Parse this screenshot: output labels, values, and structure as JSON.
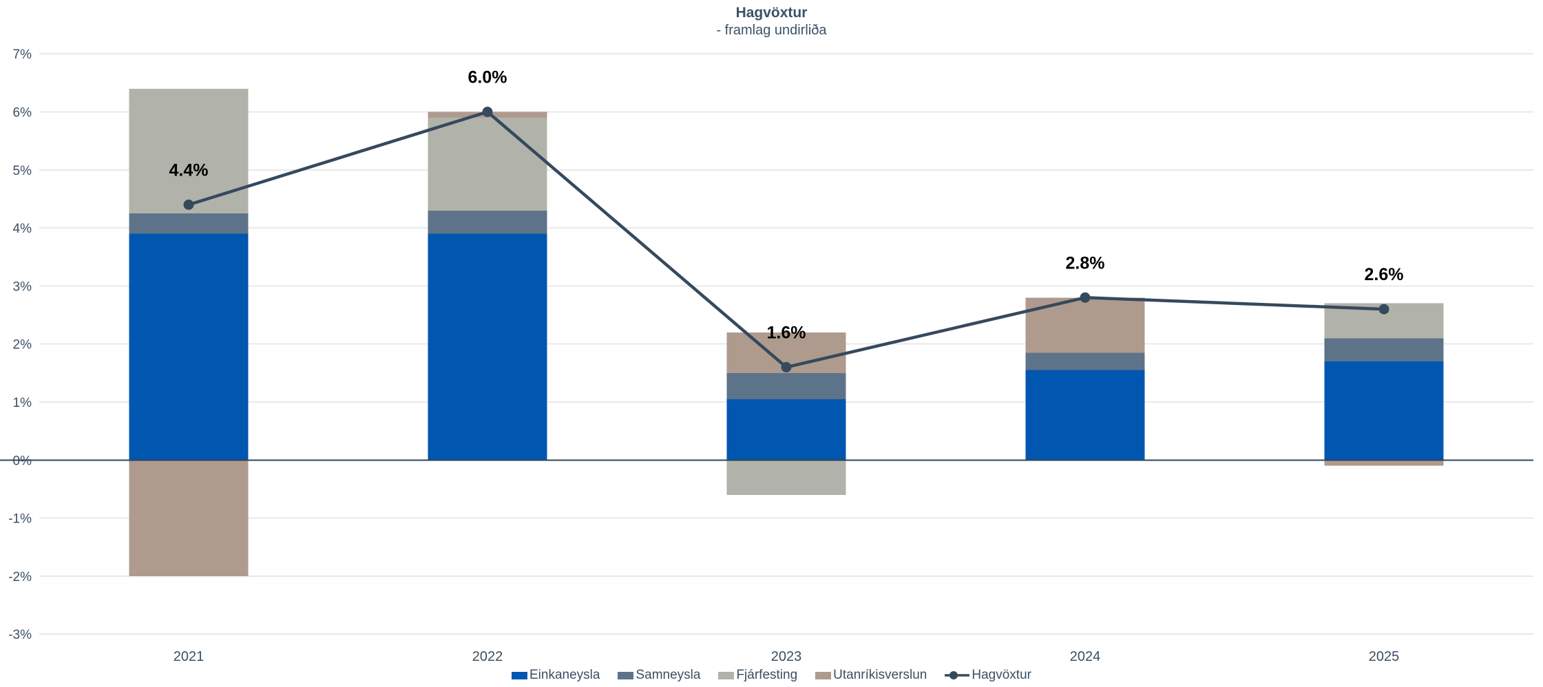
{
  "header": {
    "title": "Hagvöxtur",
    "subtitle": "- framlag undirliða"
  },
  "chart_data": {
    "type": "bar",
    "subtype": "stacked-bar-with-line-overlay",
    "title": "Hagvöxtur",
    "subtitle": "- framlag undirliða",
    "categories": [
      "2021",
      "2022",
      "2023",
      "2024",
      "2025"
    ],
    "series": [
      {
        "name": "Einkaneysla",
        "type": "bar",
        "color": "#0157b0",
        "values": [
          3.9,
          3.9,
          1.05,
          1.55,
          1.7
        ]
      },
      {
        "name": "Samneysla",
        "type": "bar",
        "color": "#5d7389",
        "values": [
          0.35,
          0.4,
          0.45,
          0.3,
          0.4
        ]
      },
      {
        "name": "Fjárfesting",
        "type": "bar",
        "color": "#b1b2aa",
        "values": [
          2.15,
          1.6,
          -0.6,
          0.0,
          0.6
        ]
      },
      {
        "name": "Utanríkisverslun",
        "type": "bar",
        "color": "#ae9b8e",
        "values": [
          -2.0,
          0.1,
          0.7,
          0.95,
          -0.1
        ]
      },
      {
        "name": "Hagvöxtur",
        "type": "line",
        "color": "#36495d",
        "values": [
          4.4,
          6.0,
          1.6,
          2.8,
          2.6
        ],
        "point_labels": [
          "4.4%",
          "6.0%",
          "1.6%",
          "2.8%",
          "2.6%"
        ]
      }
    ],
    "ylim": [
      -3,
      7
    ],
    "yticks": [
      {
        "value": 7,
        "label": "7%"
      },
      {
        "value": 6,
        "label": "6%"
      },
      {
        "value": 5,
        "label": "5%"
      },
      {
        "value": 4,
        "label": "4%"
      },
      {
        "value": 3,
        "label": "3%"
      },
      {
        "value": 2,
        "label": "2%"
      },
      {
        "value": 1,
        "label": "1%"
      },
      {
        "value": 0,
        "label": "0%"
      },
      {
        "value": -1,
        "label": "-1%"
      },
      {
        "value": -2,
        "label": "-2%"
      },
      {
        "value": -3,
        "label": "-3%"
      }
    ],
    "grid": "horizontal-only",
    "legend_position": "bottom-center",
    "colors": {
      "grid_line": "#e9e9e9",
      "zero_line": "#2e4558",
      "axis_text": "#3b4f63",
      "point_label_text": "#000000"
    }
  }
}
